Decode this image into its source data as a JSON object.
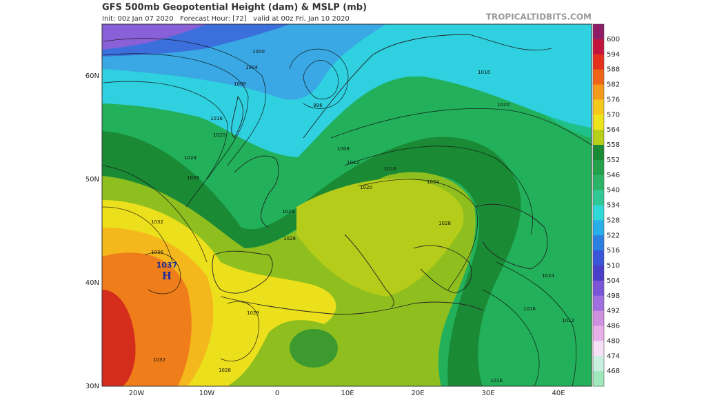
{
  "header": {
    "title": "GFS 500mb Geopotential Height (dam) & MSLP (mb)",
    "subtitle": "Init: 00z Jan 07 2020   Forecast Hour: [72]   valid at 00z Fri, Jan 10 2020",
    "watermark": "TROPICALTIDBITS.COM"
  },
  "map": {
    "lat_labels": [
      "60N",
      "50N",
      "40N",
      "30N"
    ],
    "lon_labels": [
      "20W",
      "10W",
      "0",
      "10E",
      "20E",
      "30E",
      "40E"
    ],
    "high": {
      "value": "1037",
      "symbol": "H"
    },
    "isobar_labels": [
      "1000",
      "1004",
      "1008",
      "996",
      "1016",
      "1020",
      "1024",
      "1028",
      "1032",
      "1036",
      "1012",
      "1008",
      "1016",
      "1020",
      "1024",
      "1024",
      "1028",
      "1028",
      "1028",
      "1032",
      "1028",
      "1016",
      "1020",
      "1016",
      "1024",
      "1016",
      "1012"
    ]
  },
  "colorbar": {
    "levels": [
      600,
      594,
      588,
      582,
      576,
      570,
      564,
      558,
      552,
      546,
      540,
      534,
      528,
      522,
      516,
      510,
      504,
      498,
      492,
      486,
      480,
      474,
      468
    ],
    "colors": [
      "#8e1c66",
      "#c2143c",
      "#e5301d",
      "#f06418",
      "#f49a1a",
      "#f5c81c",
      "#eee41c",
      "#b6cf1a",
      "#1a8a35",
      "#22a04a",
      "#2bb466",
      "#30c995",
      "#2fd9d8",
      "#28aee8",
      "#2b7fe0",
      "#3a55d8",
      "#4a3ec8",
      "#7a55d8",
      "#a070e0",
      "#d090e0",
      "#e8b0e8",
      "#f5e0f5",
      "#c8f0e0",
      "#9ee8bc"
    ]
  }
}
